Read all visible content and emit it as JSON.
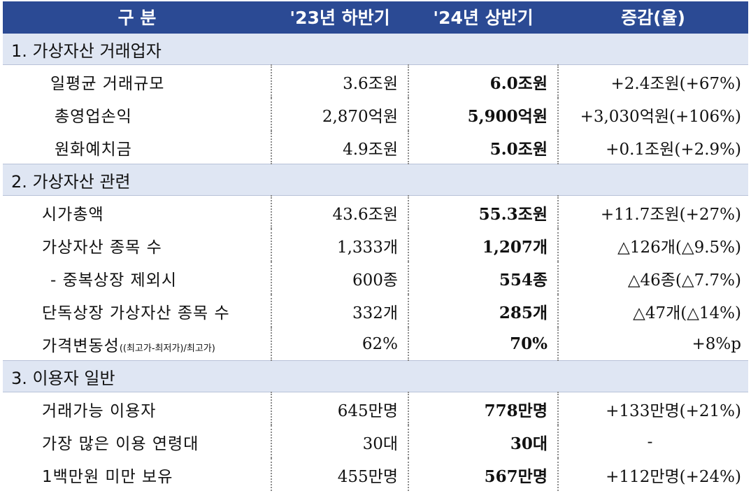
{
  "header": {
    "col_category": "구 분",
    "col_h2_23": "'23년 하반기",
    "col_h1_24": "'24년 상반기",
    "col_change": "증감(율)"
  },
  "sections": [
    {
      "title": "1. 가상자산 거래업자",
      "rows": [
        {
          "label": "일평균 거래규모",
          "v23": "3.6조원",
          "v24": "6.0조원",
          "change": "+2.4조원(+67%)",
          "change_color": "#e0262e"
        },
        {
          "label": "총영업손익",
          "v23": "2,870억원",
          "v24": "5,900억원",
          "change": "+3,030억원(+106%)",
          "change_color": "#e0262e"
        },
        {
          "label": "원화예치금",
          "v23": "4.9조원",
          "v24": "5.0조원",
          "change": "+0.1조원(+2.9%)",
          "change_color": "#e0262e"
        }
      ]
    },
    {
      "title": "2. 가상자산 관련",
      "rows": [
        {
          "label": "시가총액",
          "v23": "43.6조원",
          "v24": "55.3조원",
          "change": "+11.7조원(+27%)",
          "change_color": "#e0262e"
        },
        {
          "label": "가상자산 종목 수",
          "v23": "1,333개",
          "v24": "1,207개",
          "change": "△126개(△9.5%)",
          "change_color": "#2438d6"
        },
        {
          "label": "- 중복상장 제외시",
          "v23": "600종",
          "v24": "554종",
          "change": "△46종(△7.7%)",
          "change_color": "#2438d6"
        },
        {
          "label": "단독상장 가상자산 종목 수",
          "v23": "332개",
          "v24": "285개",
          "change": "△47개(△14%)",
          "change_color": "#2438d6"
        },
        {
          "label": "가격변동성",
          "label_note": "((최고가-최저가)/최고가)",
          "v23": "62%",
          "v24": "70%",
          "change": "+8%p",
          "change_color": "#e0262e"
        }
      ]
    },
    {
      "title": "3. 이용자 일반",
      "rows": [
        {
          "label": "거래가능 이용자",
          "v23": "645만명",
          "v24": "778만명",
          "change": "+133만명(+21%)",
          "change_color": "#e0262e"
        },
        {
          "label": "가장 많은 이용 연령대",
          "v23": "30대",
          "v24": "30대",
          "change": "-",
          "change_color": "#111111"
        },
        {
          "label": "1백만원 미만 보유",
          "v23": "455만명",
          "v24": "567만명",
          "change": "+112만명(+24%)",
          "change_color": "#e0262e"
        }
      ]
    }
  ]
}
